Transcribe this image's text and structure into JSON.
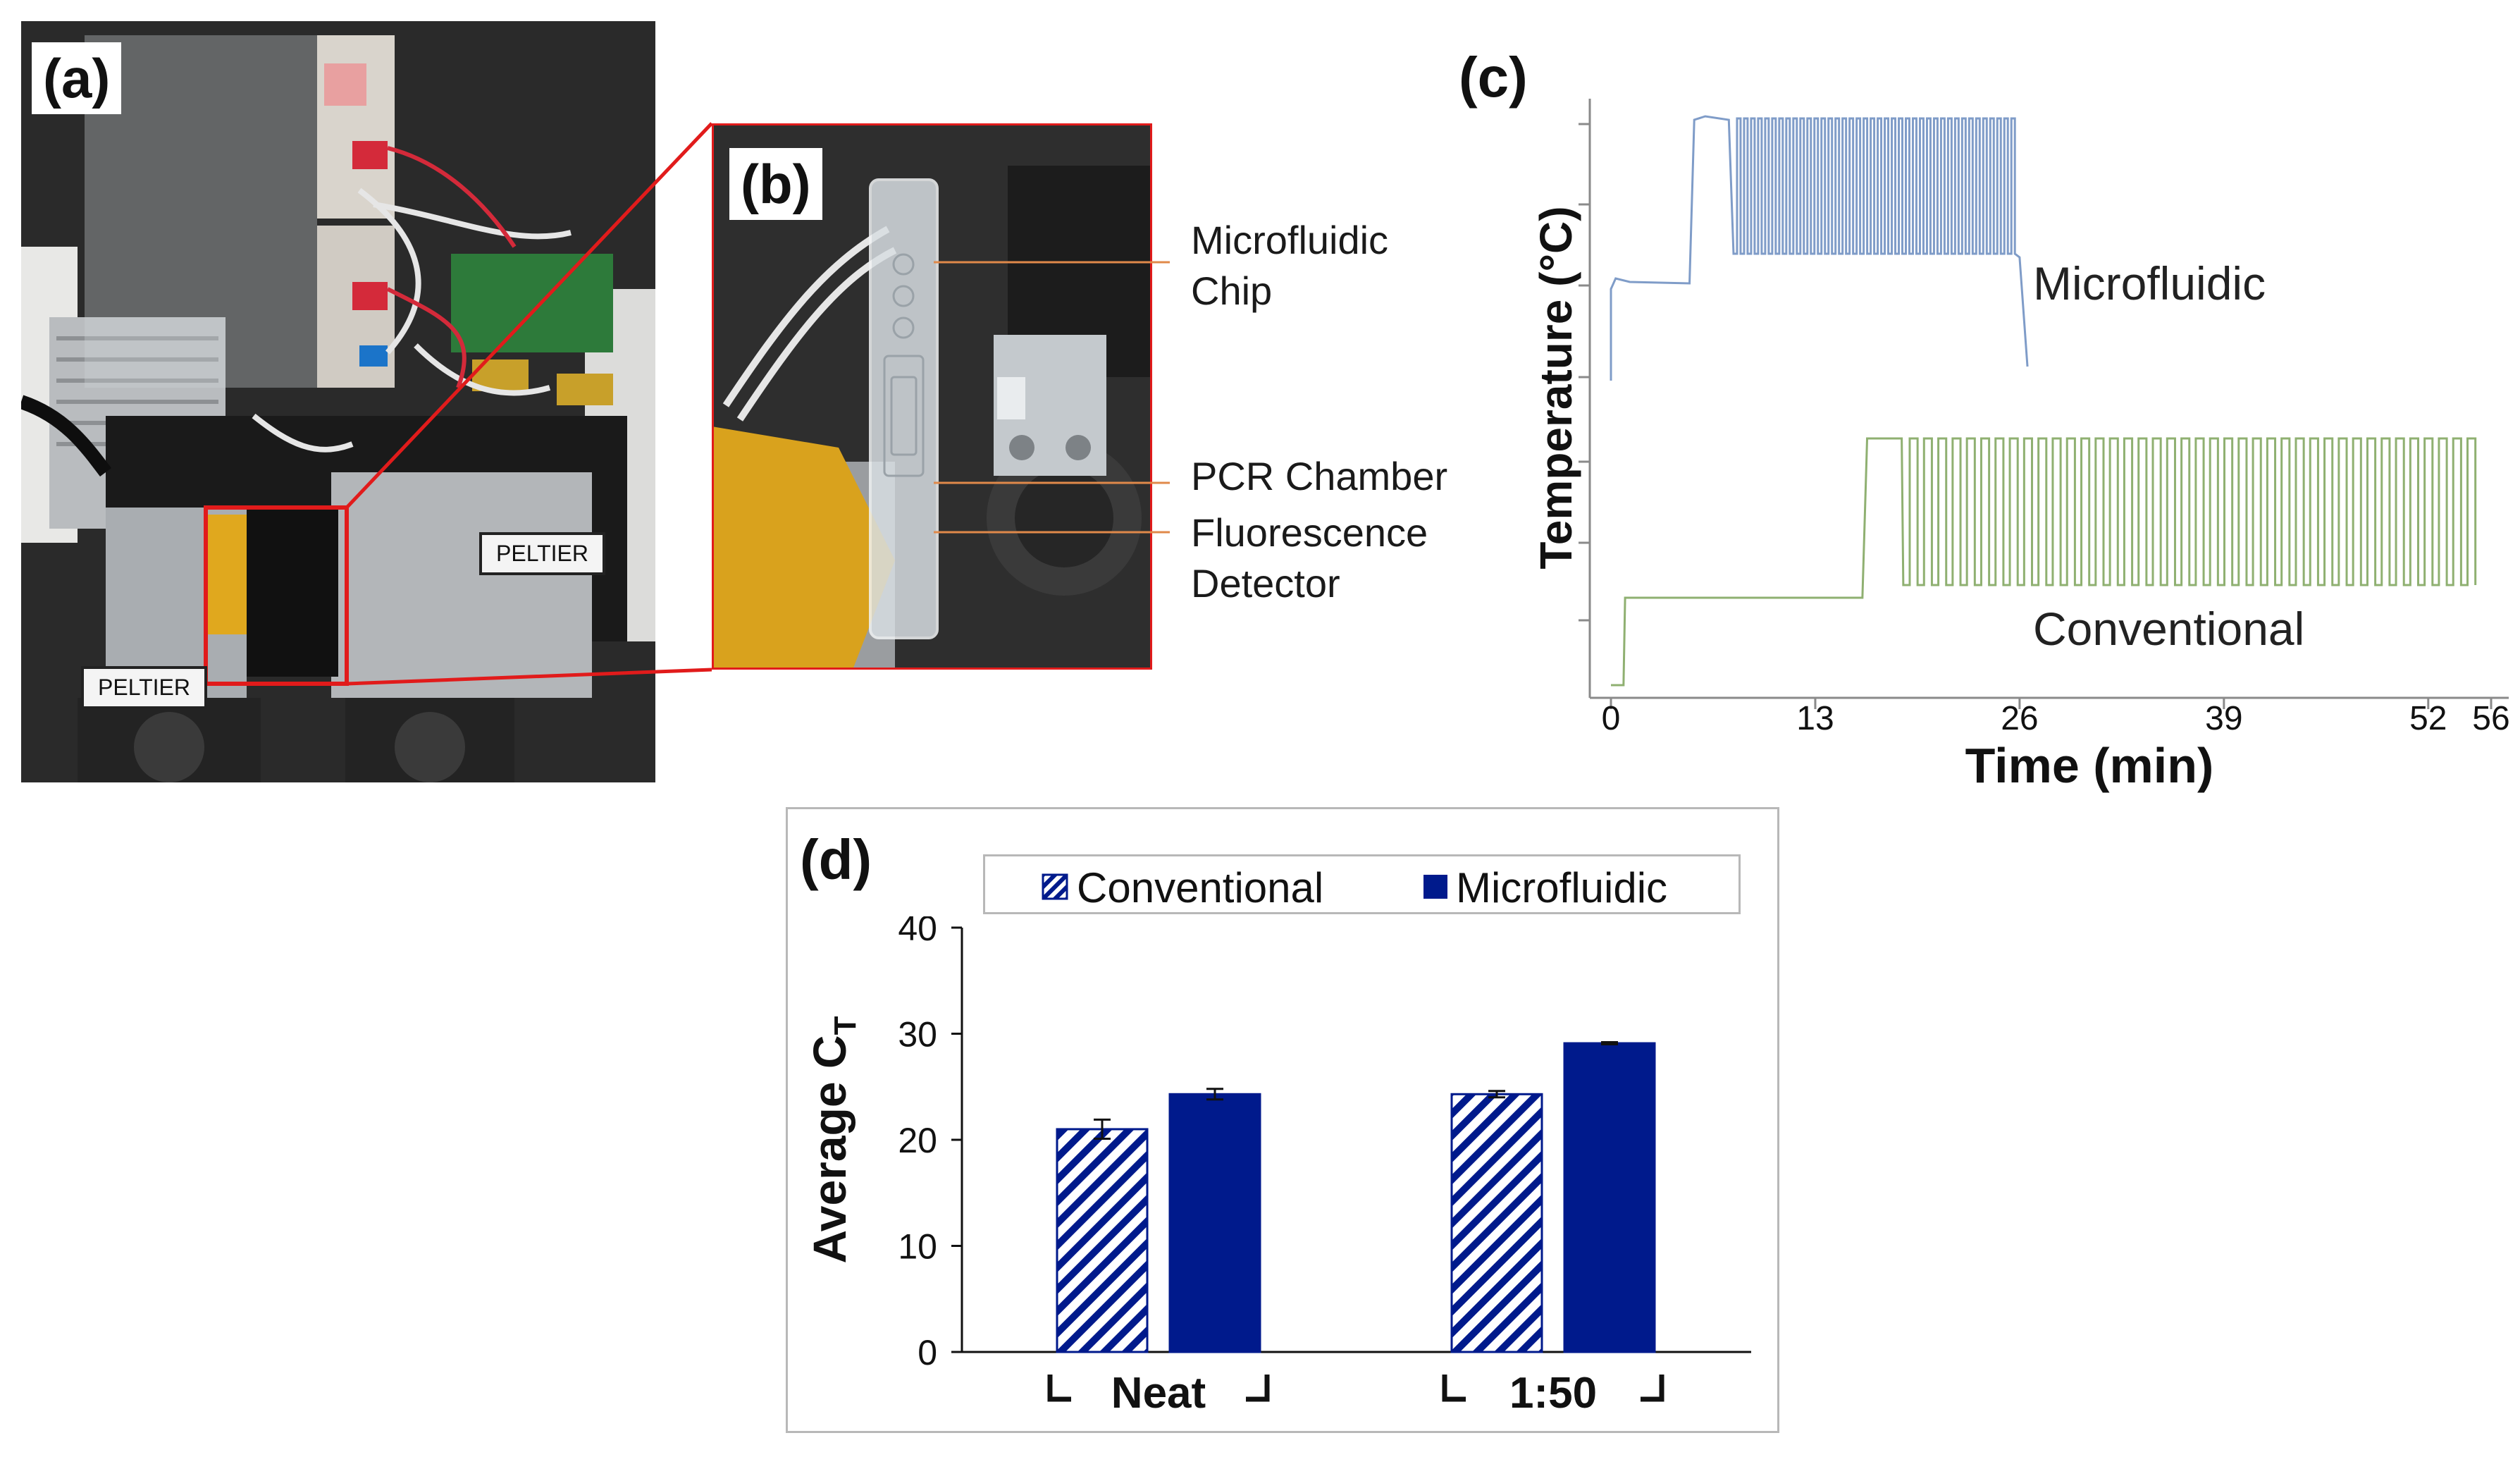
{
  "panels": {
    "a": {
      "label": "(a)",
      "peltier_left": "PELTIER",
      "peltier_right": "PELTIER"
    },
    "b": {
      "label": "(b)",
      "callouts": {
        "chip": [
          "Microfluidic",
          "Chip"
        ],
        "pcr": "PCR Chamber",
        "detector": [
          "Fluorescence",
          "Detector"
        ]
      }
    },
    "c": {
      "label": "(c)"
    },
    "d": {
      "label": "(d)"
    }
  },
  "colors": {
    "microfluidic_line": "#7f9cc8",
    "conventional_line": "#8fb071",
    "bar_fill": "#001a8c",
    "callout_line": "#e0894a",
    "highlight_box": "#e11b1b"
  },
  "chart_data": [
    {
      "type": "line",
      "xlabel": "Time (min)",
      "ylabel": "Temperature (°C)",
      "x_ticks": [
        "0",
        "13",
        "26",
        "39",
        "52",
        "56"
      ],
      "xlim": [
        0,
        56
      ],
      "y_ticks_labeled": false,
      "series": [
        {
          "name": "Microfluidic",
          "start_min": 0,
          "end_min": 26.5,
          "cycles": 40
        },
        {
          "name": "Conventional",
          "start_min": 0,
          "end_min": 55,
          "cycles": 40
        }
      ]
    },
    {
      "type": "bar",
      "categories": [
        "Neat",
        "1:50"
      ],
      "ylabel_main": "Average C",
      "ylabel_sub": "T",
      "ylim": [
        0,
        40
      ],
      "y_ticks": [
        0,
        10,
        20,
        30,
        40
      ],
      "legend_position": "top",
      "series": [
        {
          "name": "Conventional",
          "pattern": "hatched",
          "values": [
            21,
            24.3
          ],
          "errors": [
            0.9,
            0.3
          ]
        },
        {
          "name": "Microfluidic",
          "pattern": "solid",
          "values": [
            24.3,
            29.1
          ],
          "errors": [
            0.5,
            0.1
          ]
        }
      ]
    }
  ]
}
